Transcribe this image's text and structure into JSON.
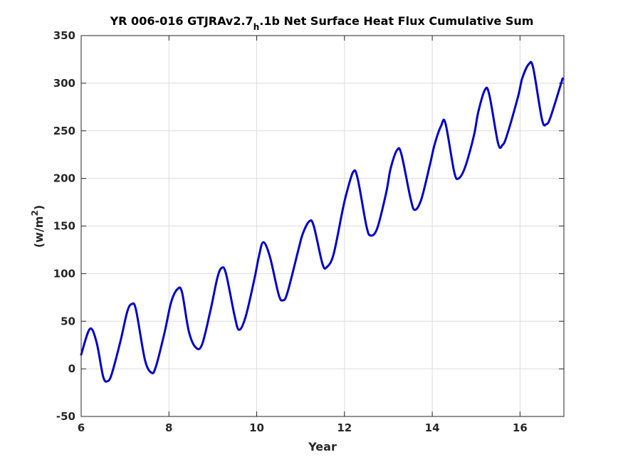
{
  "chart_data": {
    "type": "line",
    "title_main": "YR 006-016 GTJRAv2.7",
    "title_sub": "h",
    "title_rest": ".1b Net Surface Heat Flux  Cumulative Sum",
    "xlabel": "Year",
    "ylabel_main": "(w/m",
    "ylabel_sup": "2",
    "ylabel_end": ")",
    "xlim": [
      6,
      17
    ],
    "ylim": [
      -50,
      350
    ],
    "xticks": [
      6,
      8,
      10,
      12,
      14,
      16
    ],
    "yticks": [
      -50,
      0,
      50,
      100,
      150,
      200,
      250,
      300,
      350
    ],
    "grid": true,
    "series": [
      {
        "color": "#0000cc",
        "x": [
          6.0,
          6.2,
          6.35,
          6.5,
          6.6,
          6.7,
          6.9,
          7.05,
          7.15,
          7.25,
          7.45,
          7.6,
          7.7,
          7.9,
          8.05,
          8.2,
          8.3,
          8.45,
          8.6,
          8.75,
          8.95,
          9.1,
          9.2,
          9.3,
          9.5,
          9.6,
          9.75,
          9.95,
          10.05,
          10.15,
          10.3,
          10.5,
          10.6,
          10.7,
          10.95,
          11.05,
          11.2,
          11.3,
          11.5,
          11.6,
          11.75,
          11.95,
          12.05,
          12.2,
          12.3,
          12.5,
          12.6,
          12.75,
          12.95,
          13.05,
          13.2,
          13.3,
          13.5,
          13.6,
          13.75,
          13.95,
          14.05,
          14.2,
          14.3,
          14.5,
          14.6,
          14.75,
          14.95,
          15.05,
          15.2,
          15.3,
          15.5,
          15.6,
          15.7,
          15.95,
          16.05,
          16.2,
          16.3,
          16.5,
          16.6,
          16.7,
          16.97
        ],
        "y": [
          15,
          42,
          28,
          -8,
          -13,
          -5,
          30,
          60,
          68,
          62,
          10,
          -4,
          2,
          38,
          70,
          84,
          80,
          40,
          23,
          25,
          62,
          95,
          106,
          100,
          55,
          41,
          55,
          95,
          118,
          133,
          118,
          78,
          72,
          80,
          125,
          142,
          155,
          150,
          110,
          107,
          120,
          165,
          185,
          207,
          200,
          150,
          140,
          148,
          185,
          210,
          230,
          225,
          180,
          167,
          178,
          215,
          235,
          255,
          258,
          207,
          200,
          212,
          245,
          270,
          293,
          288,
          237,
          235,
          245,
          285,
          305,
          320,
          316,
          262,
          257,
          265,
          305
        ]
      }
    ]
  }
}
